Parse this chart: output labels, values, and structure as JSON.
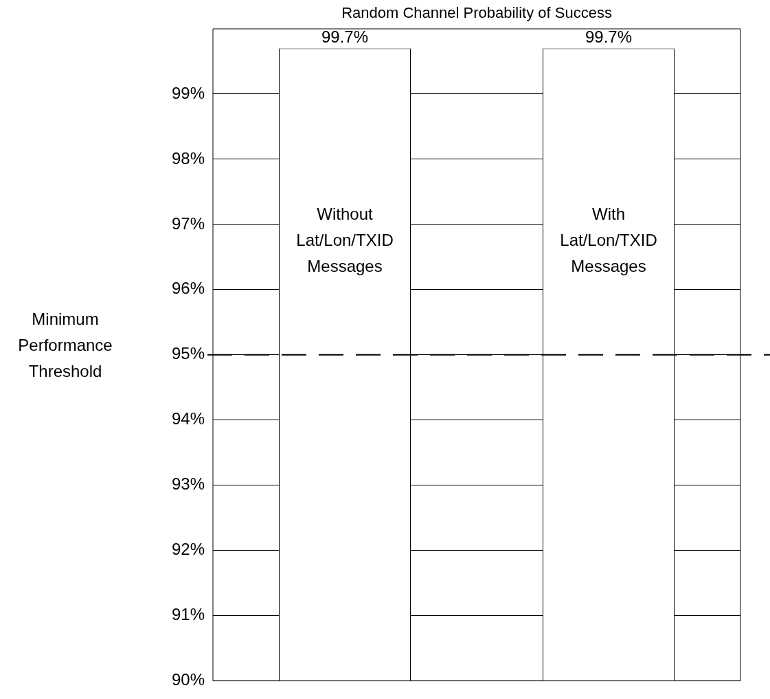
{
  "chart_data": {
    "type": "bar",
    "title": "Random Channel Probability of Success",
    "categories": [
      "Without Lat/Lon/TXID Messages",
      "With Lat/Lon/TXID Messages"
    ],
    "values": [
      99.7,
      99.7
    ],
    "value_labels": [
      "99.7%",
      "99.7%"
    ],
    "color": "#ffffff",
    "ylim": [
      90,
      100
    ],
    "yticks": [
      {
        "value": 90,
        "label": "90%"
      },
      {
        "value": 91,
        "label": "91%"
      },
      {
        "value": 92,
        "label": "92%"
      },
      {
        "value": 93,
        "label": "93%"
      },
      {
        "value": 94,
        "label": "94%"
      },
      {
        "value": 95,
        "label": "95%"
      },
      {
        "value": 96,
        "label": "96%"
      },
      {
        "value": 97,
        "label": "97%"
      },
      {
        "value": 98,
        "label": "98%"
      },
      {
        "value": 99,
        "label": "99%"
      }
    ],
    "grid": "y",
    "legend": false,
    "ref_lines": [
      {
        "axis": "y",
        "value": 95,
        "label": "Minimum Performance Threshold",
        "color": "#000000",
        "line_style": "dashed"
      }
    ]
  }
}
